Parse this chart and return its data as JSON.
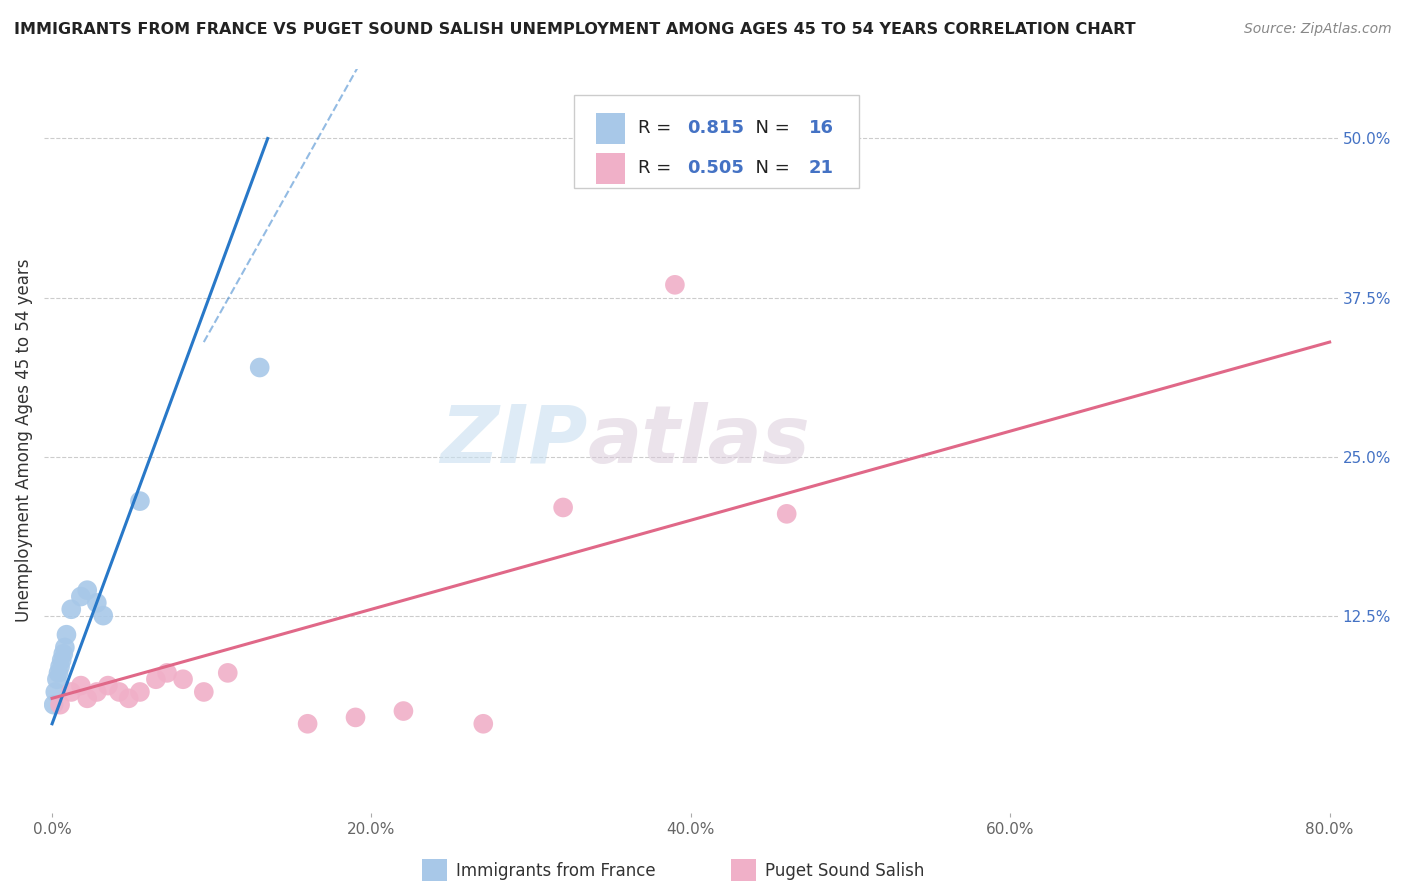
{
  "title": "IMMIGRANTS FROM FRANCE VS PUGET SOUND SALISH UNEMPLOYMENT AMONG AGES 45 TO 54 YEARS CORRELATION CHART",
  "source": "Source: ZipAtlas.com",
  "ylabel": "Unemployment Among Ages 45 to 54 years",
  "xlim": [
    -0.005,
    0.805
  ],
  "ylim": [
    -0.03,
    0.555
  ],
  "xtick_labels": [
    "0.0%",
    "20.0%",
    "40.0%",
    "60.0%",
    "80.0%"
  ],
  "xtick_values": [
    0.0,
    0.2,
    0.4,
    0.6,
    0.8
  ],
  "ytick_labels": [
    "12.5%",
    "25.0%",
    "37.5%",
    "50.0%"
  ],
  "ytick_values": [
    0.125,
    0.25,
    0.375,
    0.5
  ],
  "blue_R": "0.815",
  "blue_N": "16",
  "pink_R": "0.505",
  "pink_N": "21",
  "blue_color": "#a8c8e8",
  "blue_line_color": "#2878c8",
  "pink_color": "#f0b0c8",
  "pink_line_color": "#e06888",
  "watermark_zip": "ZIP",
  "watermark_atlas": "atlas",
  "blue_scatter_x": [
    0.001,
    0.002,
    0.003,
    0.004,
    0.005,
    0.006,
    0.007,
    0.008,
    0.009,
    0.012,
    0.018,
    0.022,
    0.028,
    0.032,
    0.055,
    0.13
  ],
  "blue_scatter_y": [
    0.055,
    0.065,
    0.075,
    0.08,
    0.085,
    0.09,
    0.095,
    0.1,
    0.11,
    0.13,
    0.14,
    0.145,
    0.135,
    0.125,
    0.215,
    0.32
  ],
  "pink_scatter_x": [
    0.005,
    0.012,
    0.018,
    0.022,
    0.028,
    0.035,
    0.042,
    0.048,
    0.055,
    0.065,
    0.072,
    0.082,
    0.095,
    0.11,
    0.16,
    0.19,
    0.22,
    0.27,
    0.32,
    0.39,
    0.46
  ],
  "pink_scatter_y": [
    0.055,
    0.065,
    0.07,
    0.06,
    0.065,
    0.07,
    0.065,
    0.06,
    0.065,
    0.075,
    0.08,
    0.075,
    0.065,
    0.08,
    0.04,
    0.045,
    0.05,
    0.04,
    0.21,
    0.385,
    0.205
  ],
  "blue_trend_x": [
    0.0,
    0.135
  ],
  "blue_trend_y": [
    0.04,
    0.5
  ],
  "pink_trend_x": [
    0.0,
    0.8
  ],
  "pink_trend_y": [
    0.06,
    0.34
  ],
  "marker_size": 200,
  "legend_label_blue": "Immigrants from France",
  "legend_label_pink": "Puget Sound Salish"
}
